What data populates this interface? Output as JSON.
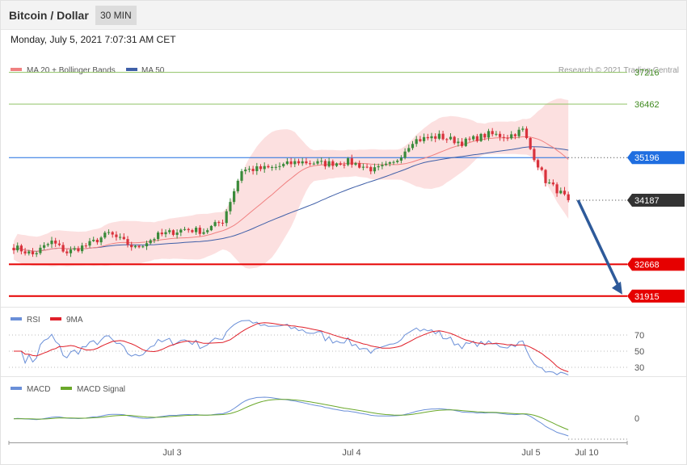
{
  "header": {
    "title": "Bitcoin / Dollar",
    "interval": "30 MIN",
    "datetime": "Monday, July 5, 2021 7:07:31 AM CET"
  },
  "legend": {
    "ma20": "MA 20 + Bollinger Bands",
    "ma50": "MA 50",
    "rsi": "RSI",
    "rsi_ma": "9MA",
    "macd": "MACD",
    "macd_signal": "MACD Signal"
  },
  "credit": "Research © 2021 Trading Central",
  "colors": {
    "bull": "#3a8a3a",
    "bear": "#d9323c",
    "ma20": "#f08080",
    "bb_fill": "#fbd5d5",
    "ma50": "#3f5fa8",
    "resistance": "#8fc264",
    "support": "#e60000",
    "pivot": "#1f6ee0",
    "current": "#333333",
    "rsi": "#6a8fd8",
    "rsi_ma": "#e0202a",
    "macd": "#6a8fd8",
    "signal": "#6aa82a",
    "arrow": "#2e5a9a"
  },
  "chart_data": {
    "type": "candlestick",
    "price_axis": {
      "min": 31700,
      "max": 37400
    },
    "levels": [
      {
        "value": 37216,
        "label": "37216",
        "kind": "resistance"
      },
      {
        "value": 36462,
        "label": "36462",
        "kind": "resistance"
      },
      {
        "value": 35196,
        "label": "35196",
        "kind": "pivot"
      },
      {
        "value": 34187,
        "label": "34187",
        "kind": "current"
      },
      {
        "value": 32668,
        "label": "32668",
        "kind": "support"
      },
      {
        "value": 31915,
        "label": "31915",
        "kind": "support"
      }
    ],
    "x_labels": [
      "Jul 3",
      "Jul 4",
      "Jul 5",
      "Jul 10"
    ],
    "forecast_arrow": {
      "from": 34187,
      "to": 31915
    },
    "anchors": [
      {
        "i": 0,
        "p": 33080
      },
      {
        "i": 5,
        "p": 32900
      },
      {
        "i": 10,
        "p": 33200
      },
      {
        "i": 14,
        "p": 32950
      },
      {
        "i": 20,
        "p": 33150
      },
      {
        "i": 25,
        "p": 33400
      },
      {
        "i": 32,
        "p": 33050
      },
      {
        "i": 38,
        "p": 33350
      },
      {
        "i": 45,
        "p": 33500
      },
      {
        "i": 50,
        "p": 33450
      },
      {
        "i": 55,
        "p": 33700
      },
      {
        "i": 60,
        "p": 34900
      },
      {
        "i": 68,
        "p": 34950
      },
      {
        "i": 75,
        "p": 35100
      },
      {
        "i": 82,
        "p": 35050
      },
      {
        "i": 88,
        "p": 35100
      },
      {
        "i": 95,
        "p": 34900
      },
      {
        "i": 100,
        "p": 35050
      },
      {
        "i": 105,
        "p": 35600
      },
      {
        "i": 112,
        "p": 35700
      },
      {
        "i": 118,
        "p": 35550
      },
      {
        "i": 125,
        "p": 35750
      },
      {
        "i": 130,
        "p": 35700
      },
      {
        "i": 134,
        "p": 35850
      },
      {
        "i": 136,
        "p": 35400
      },
      {
        "i": 140,
        "p": 34650
      },
      {
        "i": 144,
        "p": 34350
      },
      {
        "i": 146,
        "p": 34187
      }
    ],
    "rsi_axis": {
      "min": 20,
      "max": 80,
      "ticks": [
        70,
        50,
        30
      ]
    },
    "macd_axis": {
      "ticks": [
        0
      ]
    }
  }
}
